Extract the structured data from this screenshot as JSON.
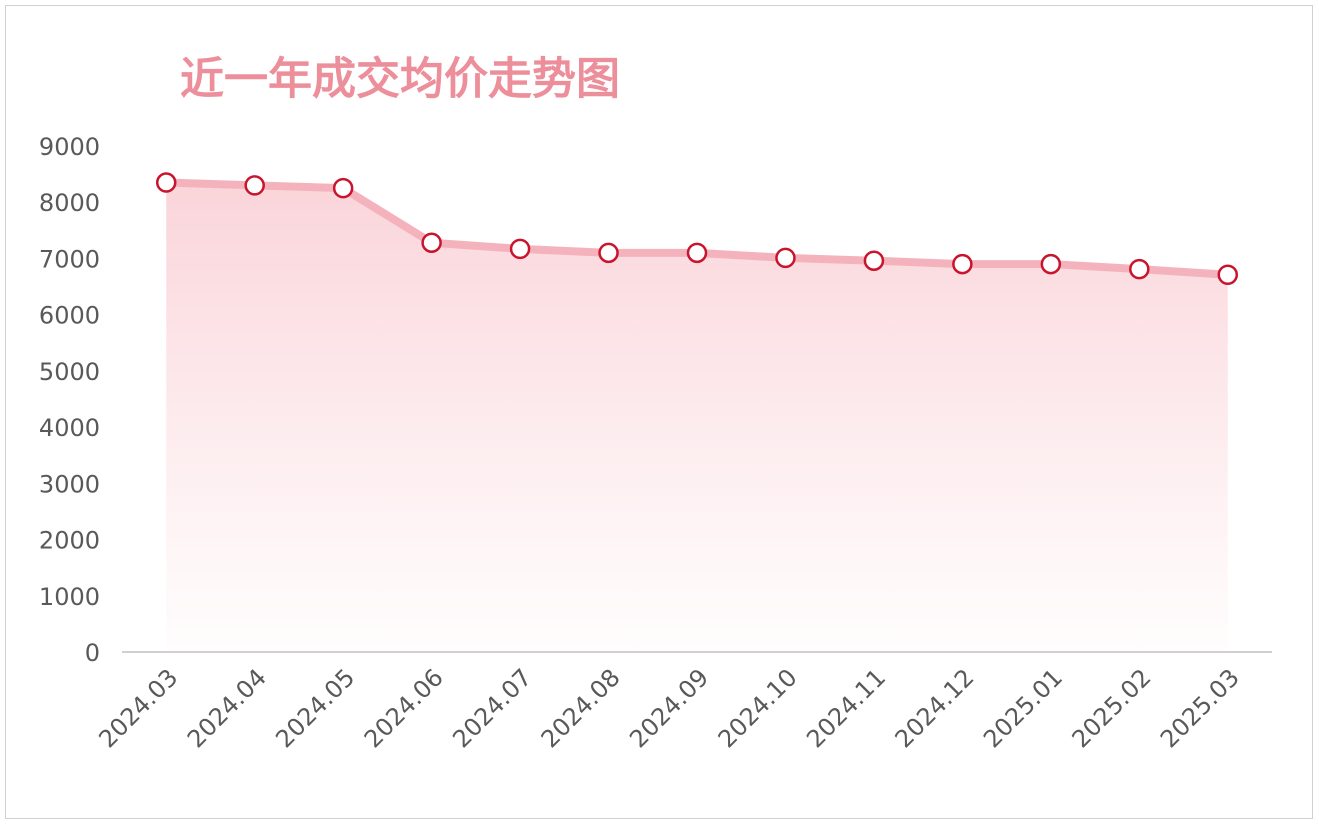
{
  "chart_data": {
    "type": "area-line",
    "title": "近一年成交均价走势图",
    "categories": [
      "2024.03",
      "2024.04",
      "2024.05",
      "2024.06",
      "2024.07",
      "2024.08",
      "2024.09",
      "2024.10",
      "2024.11",
      "2024.12",
      "2025.01",
      "2025.02",
      "2025.03"
    ],
    "values": [
      8350,
      8300,
      8250,
      7280,
      7170,
      7100,
      7100,
      7010,
      6960,
      6900,
      6900,
      6810,
      6710
    ],
    "color": "#f4b3bc",
    "marker_color": "#c8142c",
    "ylim": [
      0,
      9000
    ],
    "yticks": [
      0,
      1000,
      2000,
      3000,
      4000,
      5000,
      6000,
      7000,
      8000,
      9000
    ],
    "grid": false
  }
}
